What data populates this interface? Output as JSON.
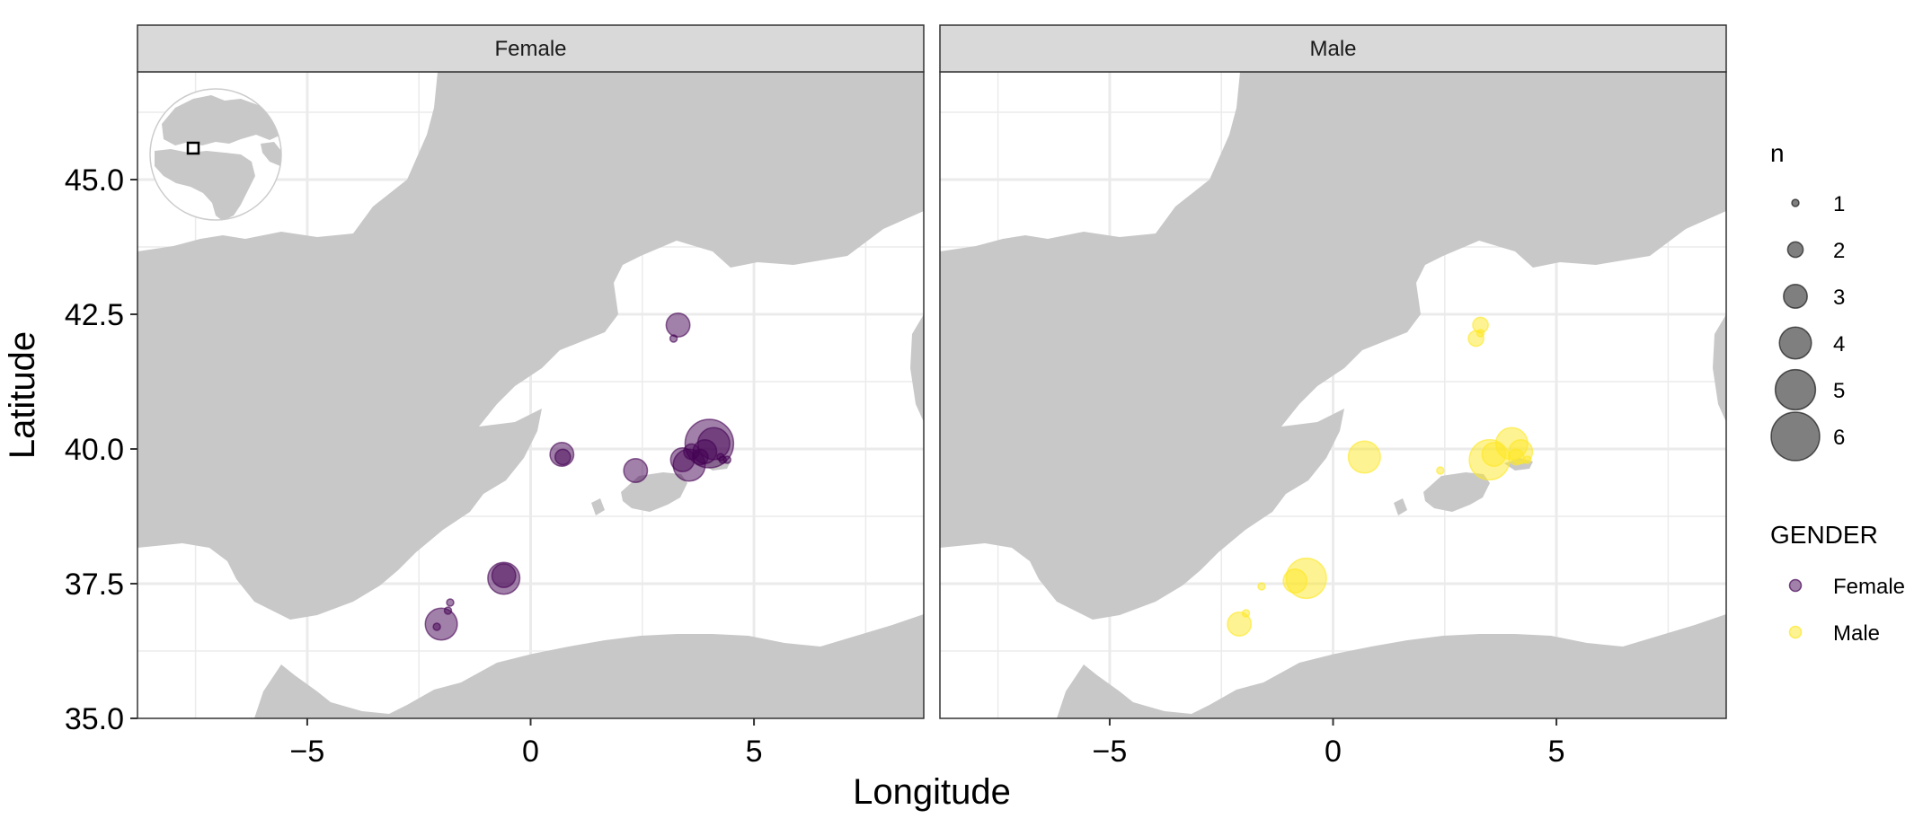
{
  "chart_data": {
    "type": "scatter",
    "facets": [
      "Female",
      "Male"
    ],
    "x_label": "Longitude",
    "y_label": "Latitude",
    "x_ticks": [
      -5,
      0,
      5
    ],
    "x_tick_labels": [
      "−5",
      "0",
      "5"
    ],
    "y_ticks": [
      35.0,
      37.5,
      40.0,
      42.5,
      45.0
    ],
    "y_tick_labels": [
      "35.0",
      "37.5",
      "40.0",
      "42.5",
      "45.0"
    ],
    "xlim": [
      -8.8,
      8.8
    ],
    "ylim": [
      35.0,
      47.0
    ],
    "grid": true,
    "legend_position": "right",
    "size_legend": {
      "title": "n",
      "entries": [
        {
          "value": 1,
          "label": "1"
        },
        {
          "value": 2,
          "label": "2"
        },
        {
          "value": 3,
          "label": "3"
        },
        {
          "value": 4,
          "label": "4"
        },
        {
          "value": 5,
          "label": "5"
        },
        {
          "value": 6,
          "label": "6"
        }
      ]
    },
    "color_legend": {
      "title": "GENDER",
      "entries": [
        {
          "label": "Female",
          "color": "#440154"
        },
        {
          "label": "Male",
          "color": "#fde725"
        }
      ]
    },
    "series": [
      {
        "name": "Female",
        "color": "#440154",
        "points": [
          {
            "lon": 3.3,
            "lat": 42.3,
            "n": 3
          },
          {
            "lon": 3.2,
            "lat": 42.05,
            "n": 1
          },
          {
            "lon": 0.7,
            "lat": 39.9,
            "n": 3
          },
          {
            "lon": 0.72,
            "lat": 39.85,
            "n": 2
          },
          {
            "lon": 2.35,
            "lat": 39.6,
            "n": 3
          },
          {
            "lon": 3.4,
            "lat": 39.8,
            "n": 3
          },
          {
            "lon": 3.55,
            "lat": 39.7,
            "n": 4
          },
          {
            "lon": 3.6,
            "lat": 39.95,
            "n": 2
          },
          {
            "lon": 3.9,
            "lat": 39.95,
            "n": 3
          },
          {
            "lon": 4.0,
            "lat": 40.1,
            "n": 6
          },
          {
            "lon": 4.1,
            "lat": 40.1,
            "n": 4
          },
          {
            "lon": 3.8,
            "lat": 39.85,
            "n": 2
          },
          {
            "lon": 4.25,
            "lat": 39.85,
            "n": 1
          },
          {
            "lon": 4.3,
            "lat": 39.8,
            "n": 1
          },
          {
            "lon": 4.4,
            "lat": 39.8,
            "n": 1
          },
          {
            "lon": -0.6,
            "lat": 37.6,
            "n": 4
          },
          {
            "lon": -0.6,
            "lat": 37.65,
            "n": 3
          },
          {
            "lon": -2.0,
            "lat": 36.75,
            "n": 4
          },
          {
            "lon": -2.1,
            "lat": 36.7,
            "n": 1
          },
          {
            "lon": -1.85,
            "lat": 37.0,
            "n": 1
          },
          {
            "lon": -1.8,
            "lat": 37.15,
            "n": 1
          }
        ]
      },
      {
        "name": "Male",
        "color": "#fde725",
        "points": [
          {
            "lon": 3.3,
            "lat": 42.3,
            "n": 2
          },
          {
            "lon": 3.2,
            "lat": 42.05,
            "n": 2
          },
          {
            "lon": 3.3,
            "lat": 42.15,
            "n": 1
          },
          {
            "lon": 0.7,
            "lat": 39.85,
            "n": 4
          },
          {
            "lon": 2.4,
            "lat": 39.6,
            "n": 1
          },
          {
            "lon": 3.5,
            "lat": 39.8,
            "n": 5
          },
          {
            "lon": 3.6,
            "lat": 39.9,
            "n": 3
          },
          {
            "lon": 4.0,
            "lat": 40.1,
            "n": 4
          },
          {
            "lon": 4.2,
            "lat": 39.95,
            "n": 3
          },
          {
            "lon": 4.35,
            "lat": 39.8,
            "n": 1
          },
          {
            "lon": 4.1,
            "lat": 39.85,
            "n": 2
          },
          {
            "lon": -0.6,
            "lat": 37.6,
            "n": 5
          },
          {
            "lon": -0.85,
            "lat": 37.55,
            "n": 3
          },
          {
            "lon": -1.6,
            "lat": 37.45,
            "n": 1
          },
          {
            "lon": -2.1,
            "lat": 36.75,
            "n": 3
          },
          {
            "lon": -1.95,
            "lat": 36.95,
            "n": 1
          }
        ]
      }
    ]
  }
}
